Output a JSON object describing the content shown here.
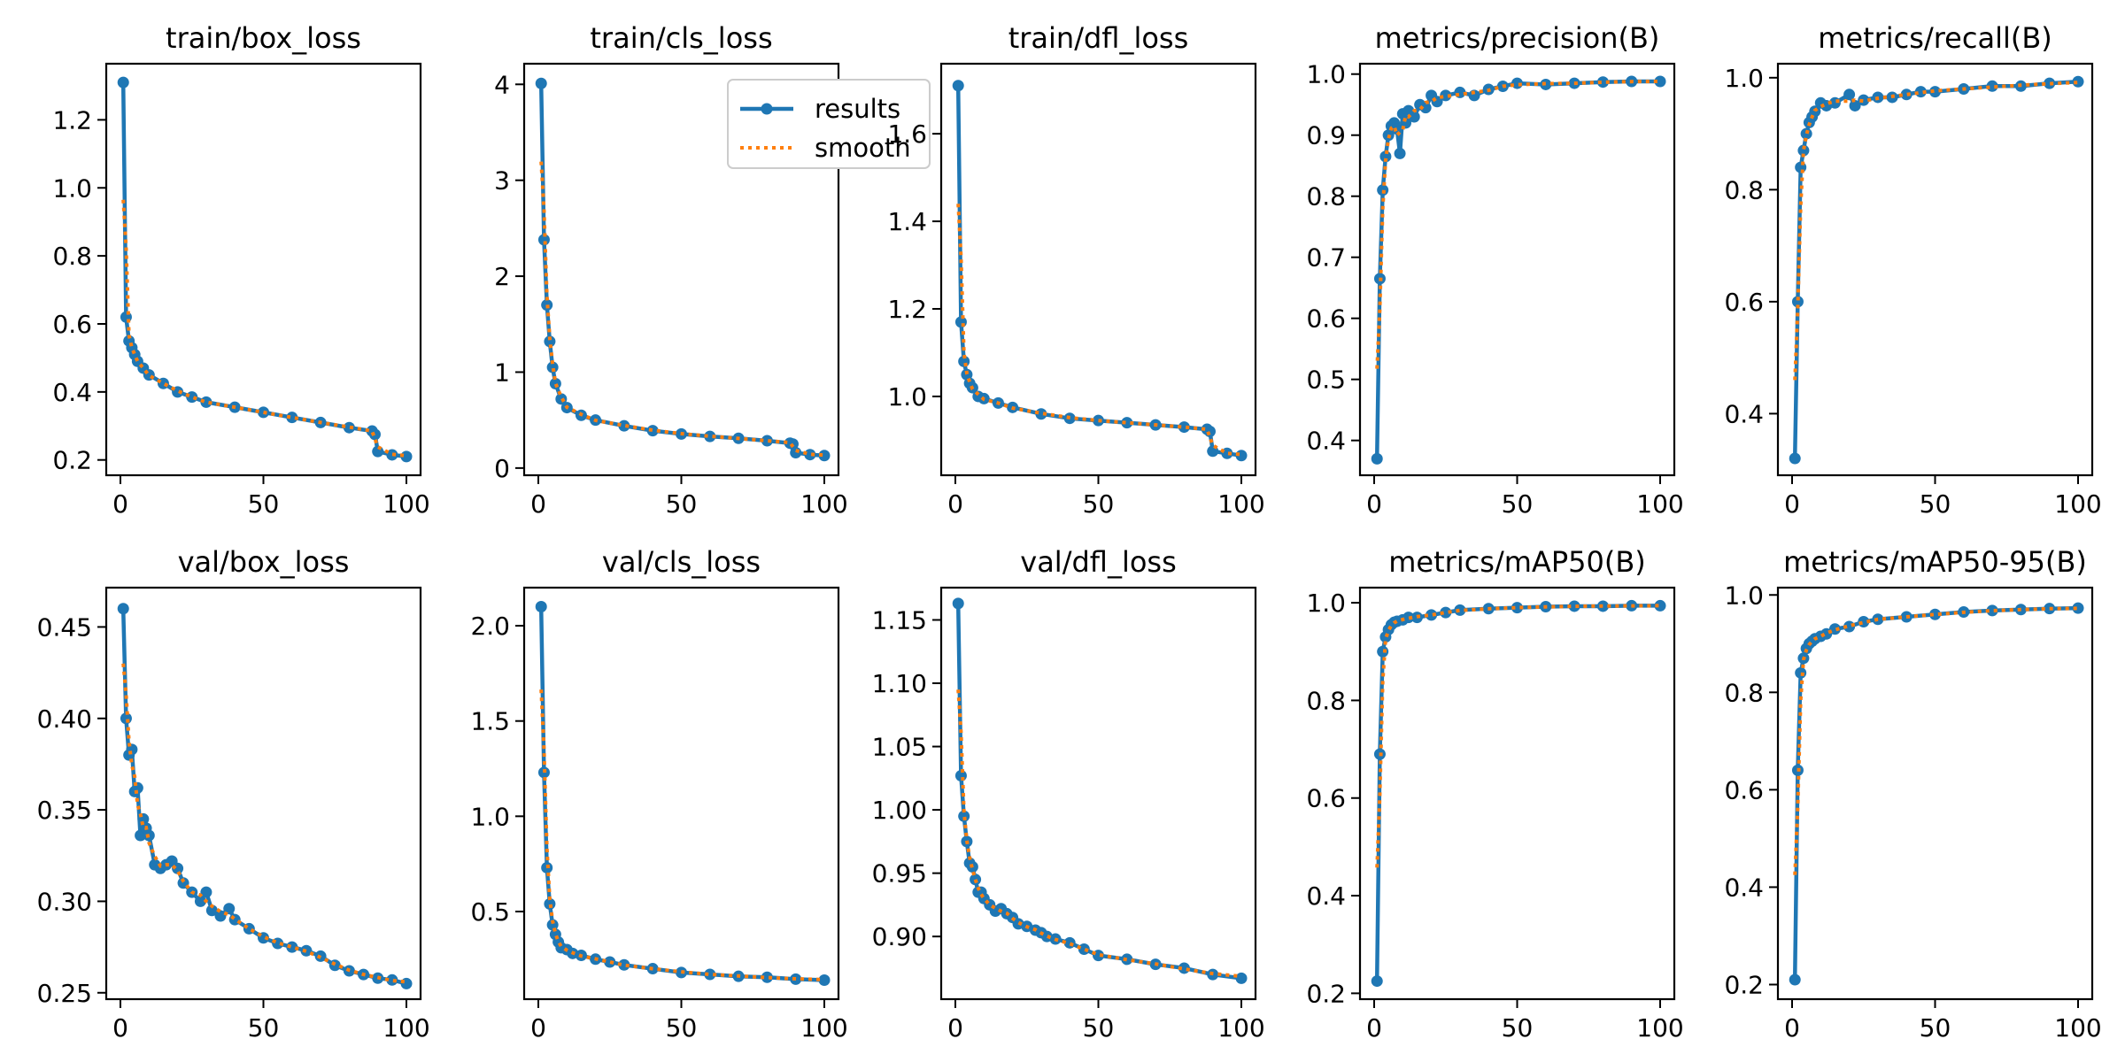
{
  "figure": {
    "title": ""
  },
  "legend": {
    "results_label": "results",
    "smooth_label": "smooth"
  },
  "colors": {
    "results": "#1f77b4",
    "smooth": "#ff7f0e"
  },
  "chart_data": [
    {
      "type": "line",
      "title": "train/box_loss",
      "x_ticks": [
        0,
        50,
        100
      ],
      "y_ticks": [
        "0.2",
        "0.4",
        "0.6",
        "0.8",
        "1.0",
        "1.2"
      ],
      "xlim": [
        -4.95,
        104.95
      ],
      "ylim": [
        0.155,
        1.365
      ],
      "epochs": [
        1,
        2,
        3,
        4,
        5,
        6,
        8,
        10,
        15,
        20,
        25,
        30,
        40,
        50,
        60,
        70,
        80,
        88,
        89,
        90,
        95,
        100
      ],
      "series": [
        {
          "name": "results",
          "values": [
            1.31,
            0.62,
            0.55,
            0.53,
            0.51,
            0.49,
            0.47,
            0.45,
            0.425,
            0.4,
            0.385,
            0.37,
            0.355,
            0.34,
            0.325,
            0.31,
            0.295,
            0.285,
            0.275,
            0.225,
            0.215,
            0.21
          ]
        }
      ]
    },
    {
      "type": "line",
      "title": "train/cls_loss",
      "x_ticks": [
        0,
        50,
        100
      ],
      "y_ticks": [
        "0",
        "1",
        "2",
        "3",
        "4"
      ],
      "xlim": [
        -4.95,
        104.95
      ],
      "ylim": [
        -0.075,
        4.215
      ],
      "epochs": [
        1,
        2,
        3,
        4,
        5,
        6,
        8,
        10,
        15,
        20,
        30,
        40,
        50,
        60,
        70,
        80,
        88,
        89,
        90,
        95,
        100
      ],
      "series": [
        {
          "name": "results",
          "values": [
            4.01,
            2.38,
            1.7,
            1.32,
            1.05,
            0.88,
            0.72,
            0.63,
            0.55,
            0.5,
            0.44,
            0.39,
            0.355,
            0.33,
            0.31,
            0.285,
            0.26,
            0.25,
            0.16,
            0.14,
            0.13
          ]
        }
      ]
    },
    {
      "type": "line",
      "title": "train/dfl_loss",
      "x_ticks": [
        0,
        50,
        100
      ],
      "y_ticks": [
        "1.0",
        "1.2",
        "1.4",
        "1.6"
      ],
      "xlim": [
        -4.95,
        104.95
      ],
      "ylim": [
        0.82,
        1.76
      ],
      "epochs": [
        1,
        2,
        3,
        4,
        5,
        6,
        8,
        10,
        15,
        20,
        30,
        40,
        50,
        60,
        70,
        80,
        88,
        89,
        90,
        95,
        100
      ],
      "series": [
        {
          "name": "results",
          "values": [
            1.71,
            1.17,
            1.08,
            1.05,
            1.03,
            1.02,
            1.0,
            0.995,
            0.985,
            0.975,
            0.96,
            0.95,
            0.945,
            0.94,
            0.935,
            0.93,
            0.925,
            0.92,
            0.875,
            0.87,
            0.865
          ]
        }
      ]
    },
    {
      "type": "line",
      "title": "metrics/precision(B)",
      "x_ticks": [
        0,
        50,
        100
      ],
      "y_ticks": [
        "0.4",
        "0.5",
        "0.6",
        "0.7",
        "0.8",
        "0.9",
        "1.0"
      ],
      "xlim": [
        -4.95,
        104.95
      ],
      "ylim": [
        0.343,
        1.017
      ],
      "epochs": [
        1,
        2,
        3,
        4,
        5,
        6,
        7,
        8,
        9,
        10,
        11,
        12,
        14,
        16,
        18,
        20,
        22,
        25,
        30,
        35,
        40,
        45,
        50,
        60,
        70,
        80,
        90,
        100
      ],
      "series": [
        {
          "name": "results",
          "values": [
            0.37,
            0.665,
            0.81,
            0.865,
            0.9,
            0.915,
            0.92,
            0.91,
            0.87,
            0.935,
            0.92,
            0.94,
            0.93,
            0.95,
            0.945,
            0.965,
            0.955,
            0.965,
            0.97,
            0.965,
            0.975,
            0.98,
            0.985,
            0.983,
            0.985,
            0.987,
            0.988,
            0.988
          ]
        }
      ]
    },
    {
      "type": "line",
      "title": "metrics/recall(B)",
      "x_ticks": [
        0,
        50,
        100
      ],
      "y_ticks": [
        "0.4",
        "0.6",
        "0.8",
        "1.0"
      ],
      "xlim": [
        -4.95,
        104.95
      ],
      "ylim": [
        0.29,
        1.025
      ],
      "epochs": [
        1,
        2,
        3,
        4,
        5,
        6,
        7,
        8,
        10,
        12,
        15,
        20,
        22,
        25,
        30,
        35,
        40,
        45,
        50,
        60,
        70,
        80,
        90,
        100
      ],
      "series": [
        {
          "name": "results",
          "values": [
            0.32,
            0.6,
            0.84,
            0.87,
            0.9,
            0.92,
            0.93,
            0.94,
            0.955,
            0.95,
            0.955,
            0.97,
            0.95,
            0.96,
            0.965,
            0.965,
            0.97,
            0.975,
            0.975,
            0.98,
            0.985,
            0.985,
            0.99,
            0.993
          ]
        }
      ]
    },
    {
      "type": "line",
      "title": "val/box_loss",
      "x_ticks": [
        0,
        50,
        100
      ],
      "y_ticks": [
        "0.25",
        "0.30",
        "0.35",
        "0.40",
        "0.45"
      ],
      "xlim": [
        -4.95,
        104.95
      ],
      "ylim": [
        0.2465,
        0.4715
      ],
      "epochs": [
        1,
        2,
        3,
        4,
        5,
        6,
        7,
        8,
        9,
        10,
        12,
        14,
        16,
        18,
        20,
        22,
        25,
        28,
        30,
        32,
        35,
        38,
        40,
        45,
        50,
        55,
        60,
        65,
        70,
        75,
        80,
        85,
        90,
        95,
        100
      ],
      "series": [
        {
          "name": "results",
          "values": [
            0.46,
            0.4,
            0.38,
            0.383,
            0.36,
            0.362,
            0.336,
            0.345,
            0.34,
            0.336,
            0.32,
            0.318,
            0.32,
            0.322,
            0.318,
            0.31,
            0.305,
            0.3,
            0.305,
            0.295,
            0.292,
            0.296,
            0.29,
            0.285,
            0.28,
            0.277,
            0.275,
            0.273,
            0.27,
            0.265,
            0.262,
            0.26,
            0.258,
            0.257,
            0.255
          ]
        }
      ]
    },
    {
      "type": "line",
      "title": "val/cls_loss",
      "x_ticks": [
        0,
        50,
        100
      ],
      "y_ticks": [
        "0.5",
        "1.0",
        "1.5",
        "2.0"
      ],
      "xlim": [
        -4.95,
        104.95
      ],
      "ylim": [
        0.04,
        2.2
      ],
      "epochs": [
        1,
        2,
        3,
        4,
        5,
        6,
        7,
        8,
        10,
        12,
        15,
        20,
        25,
        30,
        40,
        50,
        60,
        70,
        80,
        90,
        100
      ],
      "series": [
        {
          "name": "results",
          "values": [
            2.1,
            1.23,
            0.73,
            0.54,
            0.43,
            0.38,
            0.34,
            0.31,
            0.3,
            0.28,
            0.27,
            0.25,
            0.235,
            0.22,
            0.2,
            0.18,
            0.17,
            0.16,
            0.155,
            0.145,
            0.14
          ]
        }
      ]
    },
    {
      "type": "line",
      "title": "val/dfl_loss",
      "x_ticks": [
        0,
        50,
        100
      ],
      "y_ticks": [
        "0.90",
        "0.95",
        "1.00",
        "1.05",
        "1.10",
        "1.15"
      ],
      "xlim": [
        -4.95,
        104.95
      ],
      "ylim": [
        0.8505,
        1.1755
      ],
      "epochs": [
        1,
        2,
        3,
        4,
        5,
        6,
        7,
        8,
        9,
        10,
        12,
        14,
        16,
        18,
        20,
        22,
        25,
        28,
        30,
        32,
        35,
        40,
        45,
        50,
        60,
        70,
        80,
        90,
        100
      ],
      "series": [
        {
          "name": "results",
          "values": [
            1.163,
            1.027,
            0.995,
            0.975,
            0.958,
            0.955,
            0.945,
            0.935,
            0.935,
            0.93,
            0.925,
            0.92,
            0.922,
            0.918,
            0.915,
            0.91,
            0.908,
            0.905,
            0.903,
            0.9,
            0.898,
            0.895,
            0.89,
            0.885,
            0.882,
            0.878,
            0.875,
            0.87,
            0.867
          ]
        }
      ]
    },
    {
      "type": "line",
      "title": "metrics/mAP50(B)",
      "x_ticks": [
        0,
        50,
        100
      ],
      "y_ticks": [
        "0.2",
        "0.4",
        "0.6",
        "0.8",
        "1.0"
      ],
      "xlim": [
        -4.95,
        104.95
      ],
      "ylim": [
        0.188,
        1.031
      ],
      "epochs": [
        1,
        2,
        3,
        4,
        5,
        6,
        7,
        8,
        10,
        12,
        15,
        20,
        25,
        30,
        40,
        50,
        60,
        70,
        80,
        90,
        100
      ],
      "series": [
        {
          "name": "results",
          "values": [
            0.225,
            0.69,
            0.9,
            0.93,
            0.945,
            0.955,
            0.96,
            0.962,
            0.965,
            0.97,
            0.97,
            0.975,
            0.98,
            0.985,
            0.988,
            0.99,
            0.992,
            0.993,
            0.993,
            0.994,
            0.994
          ]
        }
      ]
    },
    {
      "type": "line",
      "title": "metrics/mAP50-95(B)",
      "x_ticks": [
        0,
        50,
        100
      ],
      "y_ticks": [
        "0.2",
        "0.4",
        "0.6",
        "0.8",
        "1.0"
      ],
      "xlim": [
        -4.95,
        104.95
      ],
      "ylim": [
        0.17,
        1.015
      ],
      "epochs": [
        1,
        2,
        3,
        4,
        5,
        6,
        7,
        8,
        10,
        12,
        15,
        20,
        25,
        30,
        40,
        50,
        60,
        70,
        80,
        90,
        100
      ],
      "series": [
        {
          "name": "results",
          "values": [
            0.21,
            0.64,
            0.84,
            0.87,
            0.89,
            0.9,
            0.905,
            0.91,
            0.915,
            0.92,
            0.93,
            0.935,
            0.945,
            0.95,
            0.955,
            0.96,
            0.965,
            0.968,
            0.97,
            0.972,
            0.973
          ]
        }
      ]
    }
  ]
}
